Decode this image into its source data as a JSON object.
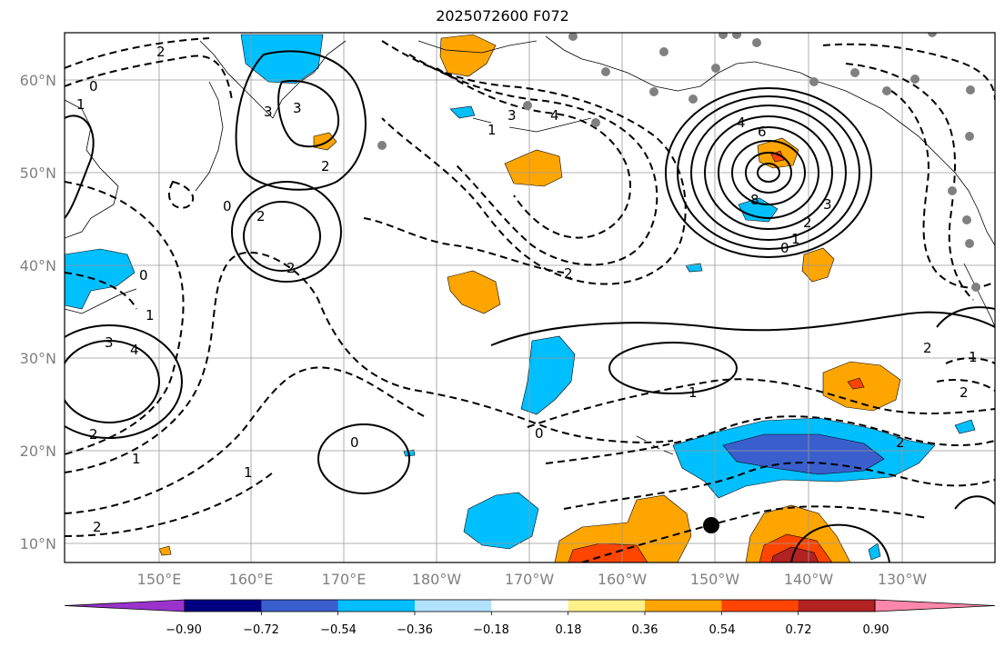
{
  "title": "2025072600 F072",
  "lon_labels": [
    "150°E",
    "160°E",
    "170°E",
    "180°W",
    "170°W",
    "160°W",
    "150°W",
    "140°W",
    "130°W"
  ],
  "lat_labels": [
    "60°N",
    "50°N",
    "40°N",
    "30°N",
    "20°N",
    "10°N"
  ],
  "colorbar": {
    "tick_labels": [
      "−0.90",
      "−0.72",
      "−0.54",
      "−0.36",
      "−0.18",
      "0.18",
      "0.36",
      "0.54",
      "0.72",
      "0.90"
    ],
    "colors": [
      "#9933cc",
      "#000080",
      "#3a5fcd",
      "#00bfff",
      "#b2e2ff",
      "#ffffff",
      "#fff08a",
      "#ffa500",
      "#ff4500",
      "#b22222",
      "#ff88aa"
    ]
  },
  "contour_labels": [
    "2",
    "0",
    "1",
    "2",
    "3",
    "4",
    "6",
    "8",
    "3",
    "2",
    "2",
    "0",
    "1",
    "3",
    "4",
    "1",
    "2",
    "2",
    "1",
    "0",
    "0",
    "2",
    "1",
    "2",
    "2",
    "0",
    "1",
    "2",
    "1",
    "0",
    "1",
    "3",
    "4",
    "3",
    "2"
  ],
  "colors": {
    "positive_shade": "#ffa500",
    "strong_positive": "#ff4500",
    "deep_positive": "#b22222",
    "negative_shade": "#00bfff",
    "strong_negative": "#3a5fcd",
    "station_dot": "#808080"
  }
}
